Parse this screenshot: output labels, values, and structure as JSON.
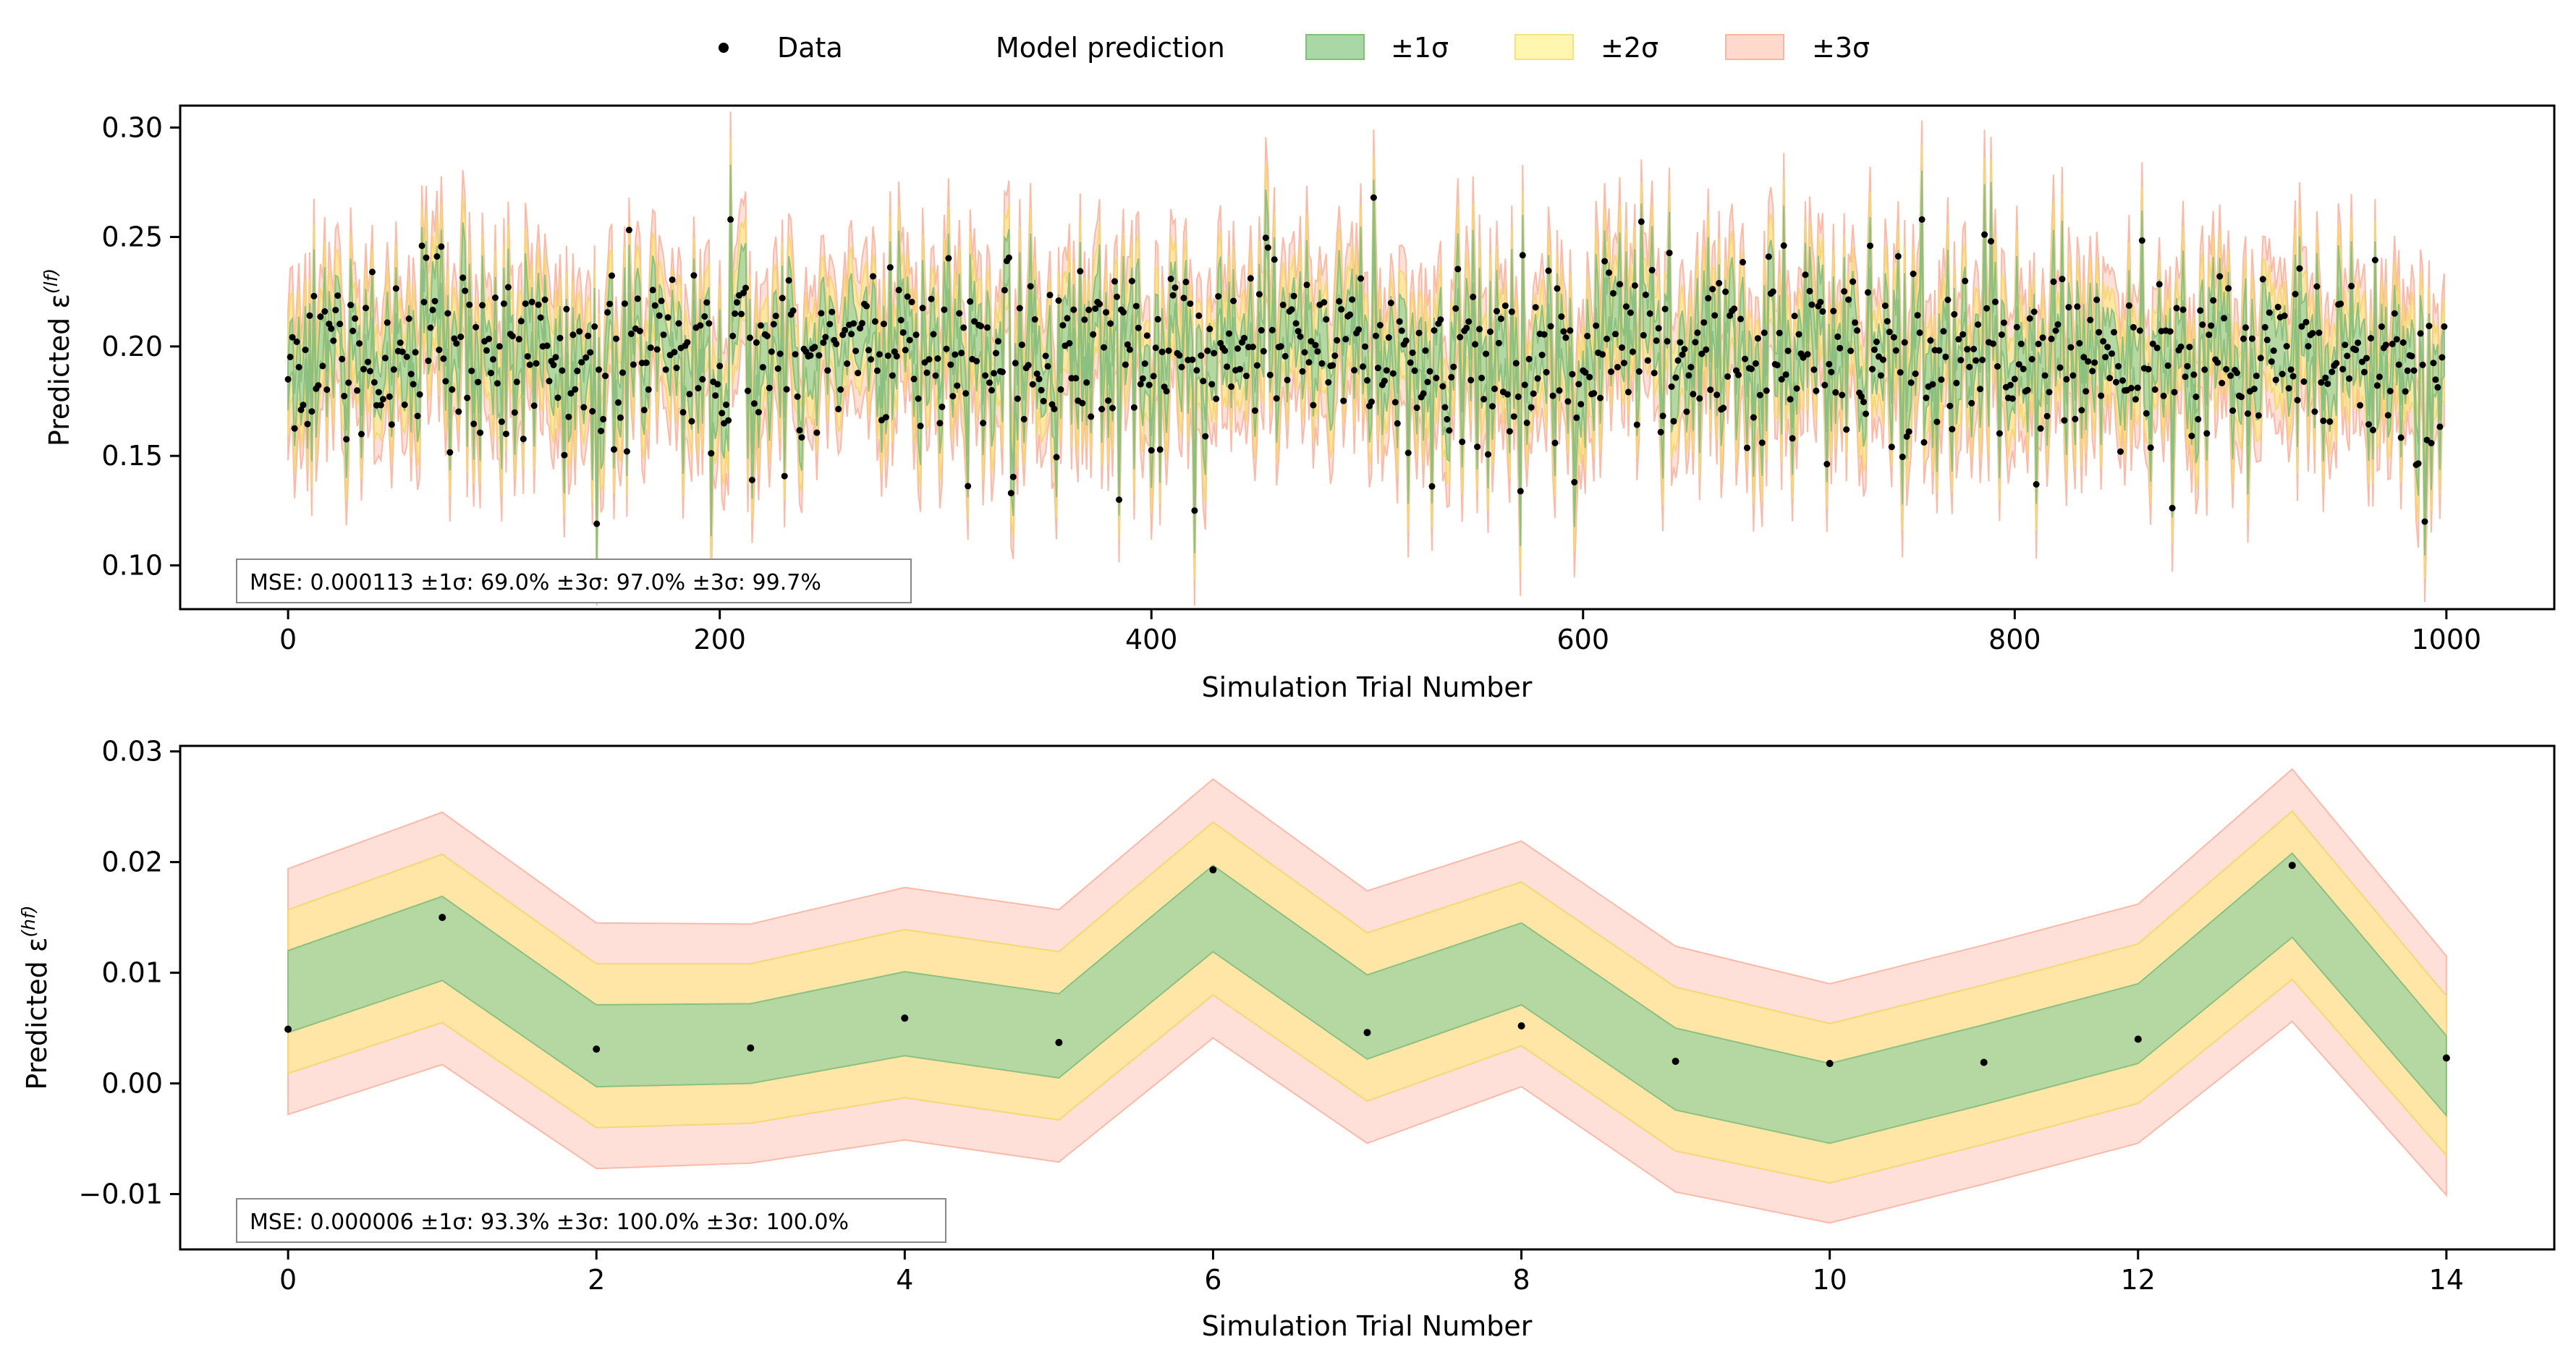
{
  "legend": {
    "items": [
      {
        "label": "Data",
        "kind": "marker",
        "color": "#000000"
      },
      {
        "label": "Model prediction",
        "kind": "line",
        "color": "#000000"
      },
      {
        "label": "±1σ",
        "kind": "patch",
        "color": "#a9d7a6",
        "edge": "#7fbf7b"
      },
      {
        "label": "±2σ",
        "kind": "patch",
        "color": "#fff7b0",
        "edge": "#f5e37a"
      },
      {
        "label": "±3σ",
        "kind": "patch",
        "color": "#ffd9cc",
        "edge": "#f8b6a2"
      }
    ],
    "placement": "top-center"
  },
  "colors": {
    "band1": "#a8d5a2",
    "band2": "#ffe69c",
    "band3": "#ffd6cc",
    "band1_edge": "#8cc080",
    "band2_edge": "#f7d774",
    "band3_edge": "#fbb9a8",
    "data": "#000000"
  },
  "chart_data": [
    {
      "type": "scatter",
      "ylabel_text": "Predicted ε",
      "ylabel_sup": "(lf)",
      "xlabel": "Simulation Trial Number",
      "xlim": [
        -50,
        1050
      ],
      "ylim": [
        0.08,
        0.31
      ],
      "xticks": [
        0,
        200,
        400,
        600,
        800,
        1000
      ],
      "xtick_labels": [
        "0",
        "200",
        "400",
        "600",
        "800",
        "1000"
      ],
      "yticks": [
        0.1,
        0.15,
        0.2,
        0.25,
        0.3
      ],
      "ytick_labels": [
        "0.10",
        "0.15",
        "0.20",
        "0.25",
        "0.30"
      ],
      "annotation": "MSE: 0.000113 ±1σ: 69.0%  ±3σ: 97.0%  ±3σ: 99.7%",
      "n_points": 1000,
      "mean": 0.196,
      "sd_data": 0.021,
      "sigma_model": 0.011,
      "notable_points": [
        {
          "x": 0,
          "y": 0.185
        },
        {
          "x": 62,
          "y": 0.246
        },
        {
          "x": 143,
          "y": 0.119
        },
        {
          "x": 215,
          "y": 0.139
        },
        {
          "x": 385,
          "y": 0.13
        },
        {
          "x": 503,
          "y": 0.268
        },
        {
          "x": 596,
          "y": 0.138
        },
        {
          "x": 627,
          "y": 0.257
        },
        {
          "x": 733,
          "y": 0.246
        },
        {
          "x": 810,
          "y": 0.137
        },
        {
          "x": 990,
          "y": 0.12
        },
        {
          "x": 1000,
          "y": 0.23
        }
      ],
      "grid": false
    },
    {
      "type": "area",
      "ylabel_text": "Predicted ε",
      "ylabel_sup": "(hf)",
      "xlabel": "Simulation Trial Number",
      "xlim": [
        -0.7,
        14.7
      ],
      "ylim": [
        -0.015,
        0.0305
      ],
      "xticks": [
        0,
        2,
        4,
        6,
        8,
        10,
        12,
        14
      ],
      "xtick_labels": [
        "0",
        "2",
        "4",
        "6",
        "8",
        "10",
        "12",
        "14"
      ],
      "yticks": [
        -0.01,
        0.0,
        0.01,
        0.02,
        0.03
      ],
      "ytick_labels": [
        "−0.01",
        "0.00",
        "0.01",
        "0.02",
        "0.03"
      ],
      "annotation": "MSE: 0.000006 ±1σ: 93.3%  ±3σ: 100.0%  ±3σ: 100.0%",
      "x": [
        0,
        1,
        2,
        3,
        4,
        5,
        6,
        7,
        8,
        9,
        10,
        11,
        12,
        13,
        14
      ],
      "data": [
        0.0049,
        0.015,
        0.0031,
        0.0032,
        0.0059,
        0.0037,
        0.0193,
        0.0046,
        0.0052,
        0.002,
        0.0018,
        0.0019,
        0.004,
        0.0197,
        0.0023
      ],
      "prediction": [
        0.0083,
        0.0131,
        0.0034,
        0.0036,
        0.0063,
        0.0043,
        0.0158,
        0.006,
        0.0108,
        0.0013,
        -0.0018,
        0.0017,
        0.0054,
        0.017,
        0.0007
      ],
      "sigma": [
        0.0037,
        0.0038,
        0.0037,
        0.0036,
        0.0038,
        0.0038,
        0.0039,
        0.0038,
        0.0037,
        0.0037,
        0.0036,
        0.0036,
        0.0036,
        0.0038,
        0.0036
      ],
      "grid": false
    }
  ]
}
